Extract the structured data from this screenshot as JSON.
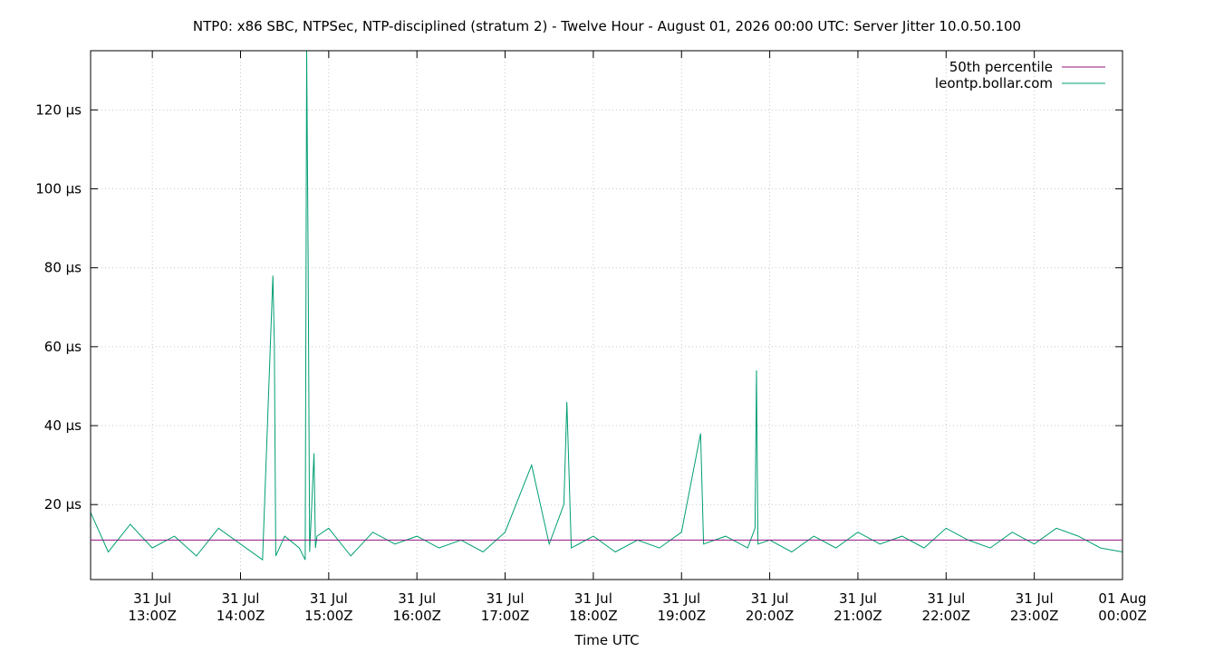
{
  "chart_data": {
    "type": "line",
    "title": "NTP0: x86 SBC, NTPSec, NTP-disciplined (stratum 2) - Twelve Hour - August 01, 2026 00:00 UTC: Server Jitter 10.0.50.100",
    "xlabel": "Time UTC",
    "ylabel": "",
    "y_unit": "µs",
    "xlim": [
      "2026-07-31T12:18Z",
      "2026-08-01T00:00Z"
    ],
    "ylim": [
      1,
      135
    ],
    "yticks": [
      20,
      40,
      60,
      80,
      100,
      120
    ],
    "ytick_labels": [
      "20 µs",
      "40 µs",
      "60 µs",
      "80 µs",
      "100 µs",
      "120 µs"
    ],
    "xticks": [
      "2026-07-31T13:00Z",
      "2026-07-31T14:00Z",
      "2026-07-31T15:00Z",
      "2026-07-31T16:00Z",
      "2026-07-31T17:00Z",
      "2026-07-31T18:00Z",
      "2026-07-31T19:00Z",
      "2026-07-31T20:00Z",
      "2026-07-31T21:00Z",
      "2026-07-31T22:00Z",
      "2026-07-31T23:00Z",
      "2026-08-01T00:00Z"
    ],
    "xtick_labels": [
      [
        "31 Jul",
        "13:00Z"
      ],
      [
        "31 Jul",
        "14:00Z"
      ],
      [
        "31 Jul",
        "15:00Z"
      ],
      [
        "31 Jul",
        "16:00Z"
      ],
      [
        "31 Jul",
        "17:00Z"
      ],
      [
        "31 Jul",
        "18:00Z"
      ],
      [
        "31 Jul",
        "19:00Z"
      ],
      [
        "31 Jul",
        "20:00Z"
      ],
      [
        "31 Jul",
        "21:00Z"
      ],
      [
        "31 Jul",
        "22:00Z"
      ],
      [
        "31 Jul",
        "23:00Z"
      ],
      [
        "01 Aug",
        "00:00Z"
      ]
    ],
    "grid": true,
    "legend_position": "top-right",
    "series": [
      {
        "name": "50th percentile",
        "color": "#94107e",
        "x": [
          "2026-07-31T12:18Z",
          "2026-08-01T00:00Z"
        ],
        "values": [
          11,
          11
        ]
      },
      {
        "name": "leontp.bollar.com",
        "color": "#009e73",
        "x": [
          "2026-07-31T12:18Z",
          "2026-07-31T12:30Z",
          "2026-07-31T12:45Z",
          "2026-07-31T13:00Z",
          "2026-07-31T13:15Z",
          "2026-07-31T13:30Z",
          "2026-07-31T13:45Z",
          "2026-07-31T14:00Z",
          "2026-07-31T14:15Z",
          "2026-07-31T14:22Z",
          "2026-07-31T14:23Z",
          "2026-07-31T14:24Z",
          "2026-07-31T14:30Z",
          "2026-07-31T14:40Z",
          "2026-07-31T14:44Z",
          "2026-07-31T14:45Z",
          "2026-07-31T14:46Z",
          "2026-07-31T14:47Z",
          "2026-07-31T14:50Z",
          "2026-07-31T14:51Z",
          "2026-07-31T14:52Z",
          "2026-07-31T15:00Z",
          "2026-07-31T15:15Z",
          "2026-07-31T15:30Z",
          "2026-07-31T15:45Z",
          "2026-07-31T16:00Z",
          "2026-07-31T16:15Z",
          "2026-07-31T16:30Z",
          "2026-07-31T16:45Z",
          "2026-07-31T17:00Z",
          "2026-07-31T17:18Z",
          "2026-07-31T17:30Z",
          "2026-07-31T17:40Z",
          "2026-07-31T17:42Z",
          "2026-07-31T17:45Z",
          "2026-07-31T18:00Z",
          "2026-07-31T18:15Z",
          "2026-07-31T18:30Z",
          "2026-07-31T18:45Z",
          "2026-07-31T19:00Z",
          "2026-07-31T19:13Z",
          "2026-07-31T19:15Z",
          "2026-07-31T19:30Z",
          "2026-07-31T19:45Z",
          "2026-07-31T19:50Z",
          "2026-07-31T19:51Z",
          "2026-07-31T19:52Z",
          "2026-07-31T20:00Z",
          "2026-07-31T20:15Z",
          "2026-07-31T20:30Z",
          "2026-07-31T20:45Z",
          "2026-07-31T21:00Z",
          "2026-07-31T21:15Z",
          "2026-07-31T21:30Z",
          "2026-07-31T21:45Z",
          "2026-07-31T22:00Z",
          "2026-07-31T22:15Z",
          "2026-07-31T22:30Z",
          "2026-07-31T22:45Z",
          "2026-07-31T23:00Z",
          "2026-07-31T23:15Z",
          "2026-07-31T23:30Z",
          "2026-07-31T23:45Z",
          "2026-08-01T00:00Z"
        ],
        "values": [
          18,
          8,
          15,
          9,
          12,
          7,
          14,
          10,
          6,
          78,
          61,
          7,
          12,
          9,
          6,
          135,
          83,
          8,
          33,
          9,
          12,
          14,
          7,
          13,
          10,
          12,
          9,
          11,
          8,
          13,
          30,
          10,
          20,
          46,
          9,
          12,
          8,
          11,
          9,
          13,
          38,
          10,
          12,
          9,
          14,
          54,
          10,
          11,
          8,
          12,
          9,
          13,
          10,
          12,
          9,
          14,
          11,
          9,
          13,
          10,
          14,
          12,
          9,
          8
        ]
      }
    ]
  }
}
